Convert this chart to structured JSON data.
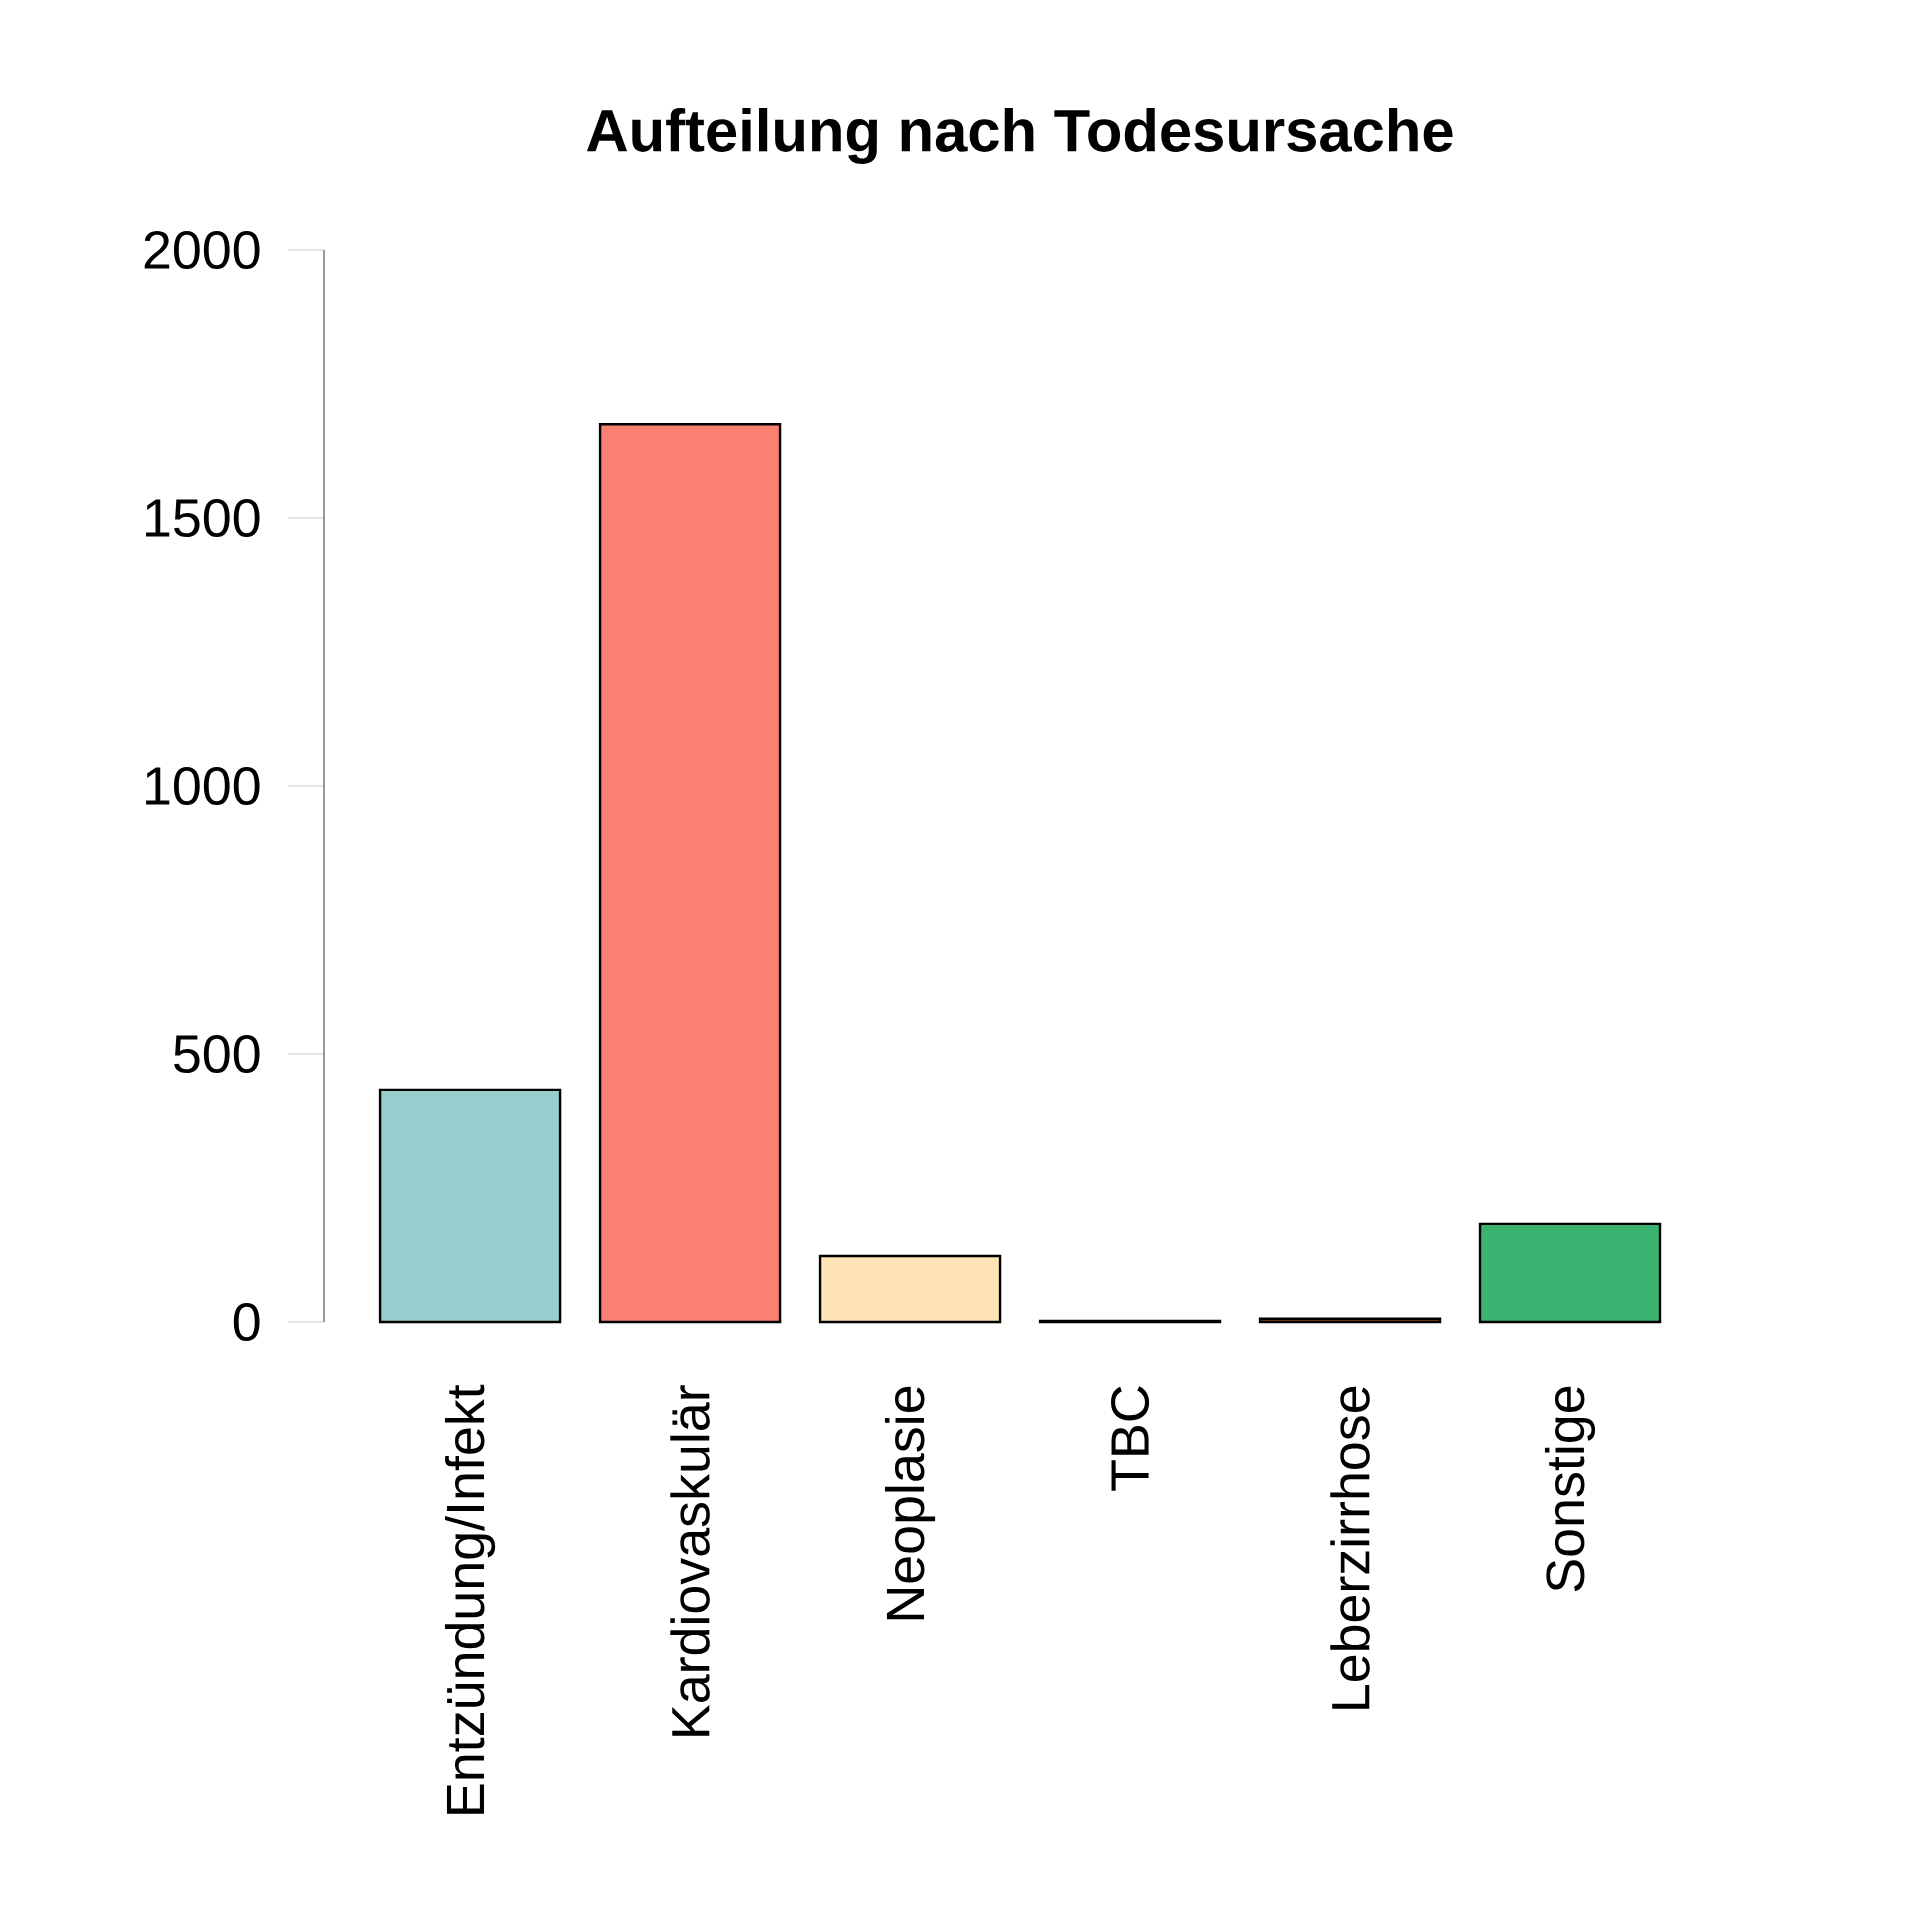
{
  "chart_data": {
    "type": "bar",
    "title": "Aufteilung nach Todesursache",
    "categories": [
      "Entzündung/Infekt",
      "Kardiovaskulär",
      "Neoplasie",
      "TBC",
      "Leberzirrhose",
      "Sonstige"
    ],
    "values": [
      433,
      1675,
      123,
      2,
      6,
      183
    ],
    "colors": [
      "#96cdcd",
      "#fa8072",
      "#ffe4b5",
      "#a0522d",
      "#8b4513",
      "#3cb371"
    ],
    "ylim": [
      0,
      2000
    ],
    "yticks": [
      0,
      500,
      1000,
      1500,
      2000
    ],
    "grid": false
  }
}
